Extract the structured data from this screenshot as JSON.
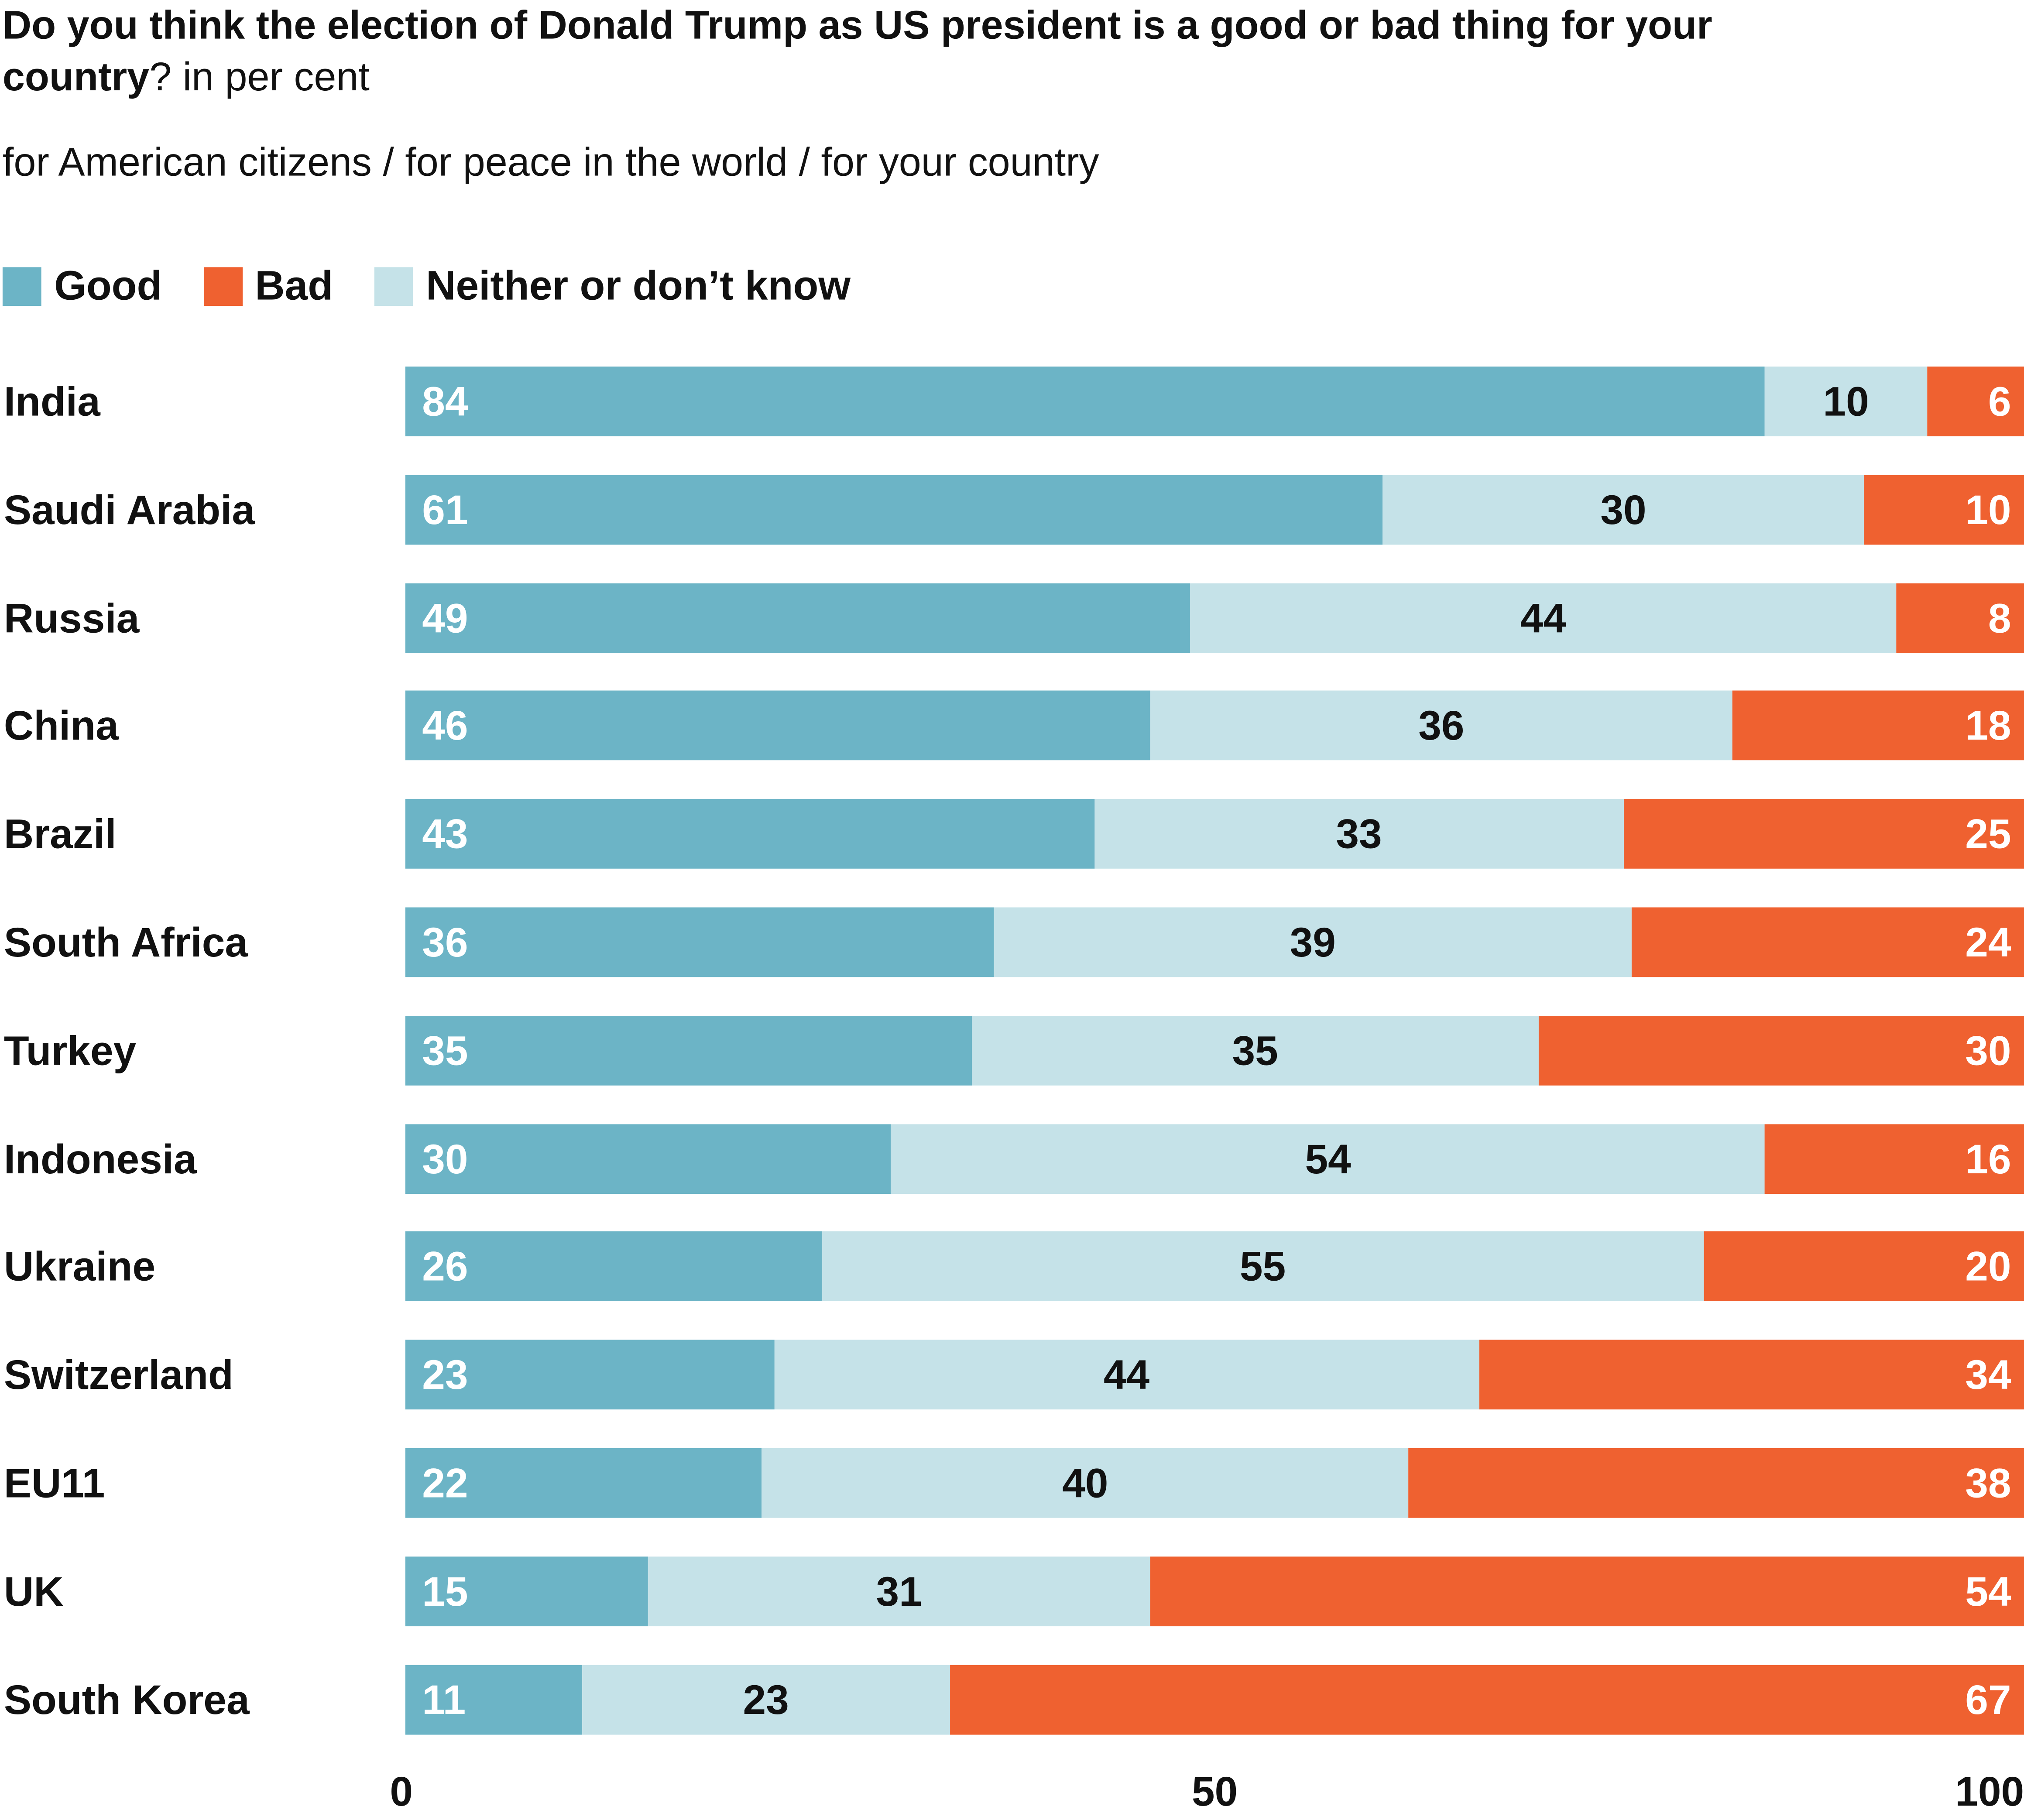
{
  "chart_data": {
    "type": "bar",
    "orientation": "horizontal-stacked",
    "title_bold": "Do you think the election of Donald Trump as US president is a good or bad thing for your country",
    "title_rest": "? in per cent",
    "subtitle": "for American citizens / for peace in the world / for your country",
    "legend": [
      {
        "name": "Good",
        "color": "#6cb4c6"
      },
      {
        "name": "Bad",
        "color": "#ef6130"
      },
      {
        "name": "Neither or don’t know",
        "color": "#c5e2e8"
      }
    ],
    "categories": [
      "India",
      "Saudi Arabia",
      "Russia",
      "China",
      "Brazil",
      "South Africa",
      "Turkey",
      "Indonesia",
      "Ukraine",
      "Switzerland",
      "EU11",
      "UK",
      "South Korea"
    ],
    "series": [
      {
        "name": "Good",
        "color": "#6cb4c6",
        "values": [
          84,
          61,
          49,
          46,
          43,
          36,
          35,
          30,
          26,
          23,
          22,
          15,
          11
        ]
      },
      {
        "name": "Neither or don’t know",
        "color": "#c5e2e8",
        "values": [
          10,
          30,
          44,
          36,
          33,
          39,
          35,
          54,
          55,
          44,
          40,
          31,
          23
        ]
      },
      {
        "name": "Bad",
        "color": "#ef6130",
        "values": [
          6,
          10,
          8,
          18,
          25,
          24,
          30,
          16,
          20,
          34,
          38,
          54,
          67
        ]
      }
    ],
    "xlim": [
      0,
      100
    ],
    "xticks": [
      "0",
      "50",
      "100"
    ],
    "xlabel": "",
    "ylabel": "",
    "grid": false,
    "legend_position": "top-left"
  }
}
